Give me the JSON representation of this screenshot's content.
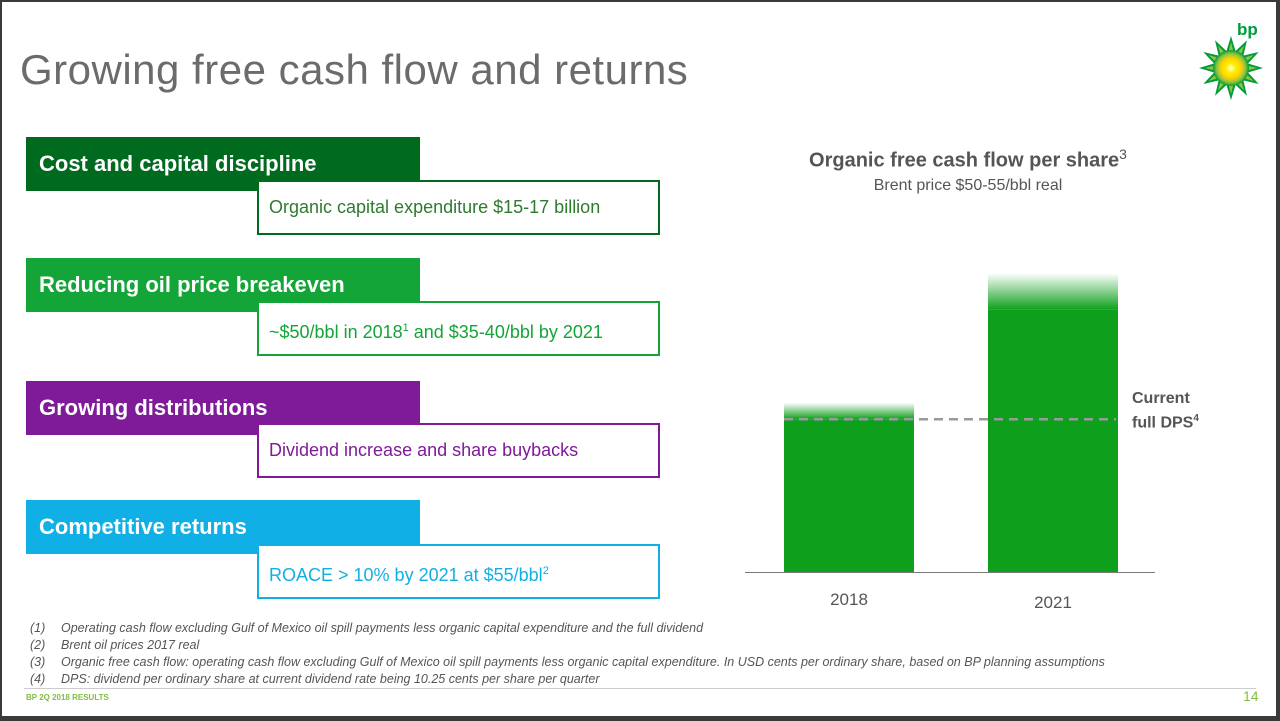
{
  "slide": {
    "title": "Growing free cash flow and returns",
    "logo_text": "bp",
    "footer": "BP 2Q 2018 RESULTS",
    "page_number": "14"
  },
  "themes": [
    {
      "heading": "Cost and capital discipline",
      "detail": "Organic capital expenditure $15-17 billion",
      "color": "#006a1f",
      "text_color": "#2f7a2f"
    },
    {
      "heading": "Reducing oil price breakeven",
      "detail_pre": "~$50/bbl in 2018",
      "detail_sup": "1",
      "detail_post": " and $35-40/bbl by 2021",
      "color": "#13a537",
      "text_color": "#13a537"
    },
    {
      "heading": "Growing distributions",
      "detail": "Dividend increase and share buybacks",
      "color": "#7f1a99",
      "text_color": "#7f1a99"
    },
    {
      "heading": "Competitive returns",
      "detail_pre": "ROACE > 10% by 2021 at $55/bbl",
      "detail_sup": "2",
      "color": "#10b0e6",
      "text_color": "#10b0e6"
    }
  ],
  "chart_data": {
    "type": "bar",
    "title": "Organic free cash flow per share",
    "title_sup": "3",
    "subtitle": "Brent price $50-55/bbl real",
    "categories": [
      "2018",
      "2021"
    ],
    "bars": [
      {
        "solid": 0.46,
        "fade_to": 0.51
      },
      {
        "solid": 0.79,
        "fade_to": 0.9
      }
    ],
    "reference_line": {
      "level": 0.46,
      "label": "Current full DPS",
      "label_line1": "Current",
      "label_line2": "full DPS",
      "label_sup": "4",
      "style": "dashed"
    },
    "ylim": [
      0,
      1
    ],
    "y_axis": "unlabeled",
    "bar_color": "#0ea01c",
    "grid": false
  },
  "notes": [
    {
      "n": "(1)",
      "text": "Operating cash flow excluding Gulf of Mexico oil spill payments less organic capital expenditure and the full dividend"
    },
    {
      "n": "(2)",
      "text": "Brent oil prices 2017 real"
    },
    {
      "n": "(3)",
      "text": "Organic free cash flow: operating cash flow excluding Gulf of Mexico oil spill payments less organic capital expenditure. In USD cents per ordinary share, based on BP planning assumptions"
    },
    {
      "n": "(4)",
      "text": "DPS: dividend per ordinary share at current dividend rate being 10.25 cents per share per quarter"
    }
  ]
}
